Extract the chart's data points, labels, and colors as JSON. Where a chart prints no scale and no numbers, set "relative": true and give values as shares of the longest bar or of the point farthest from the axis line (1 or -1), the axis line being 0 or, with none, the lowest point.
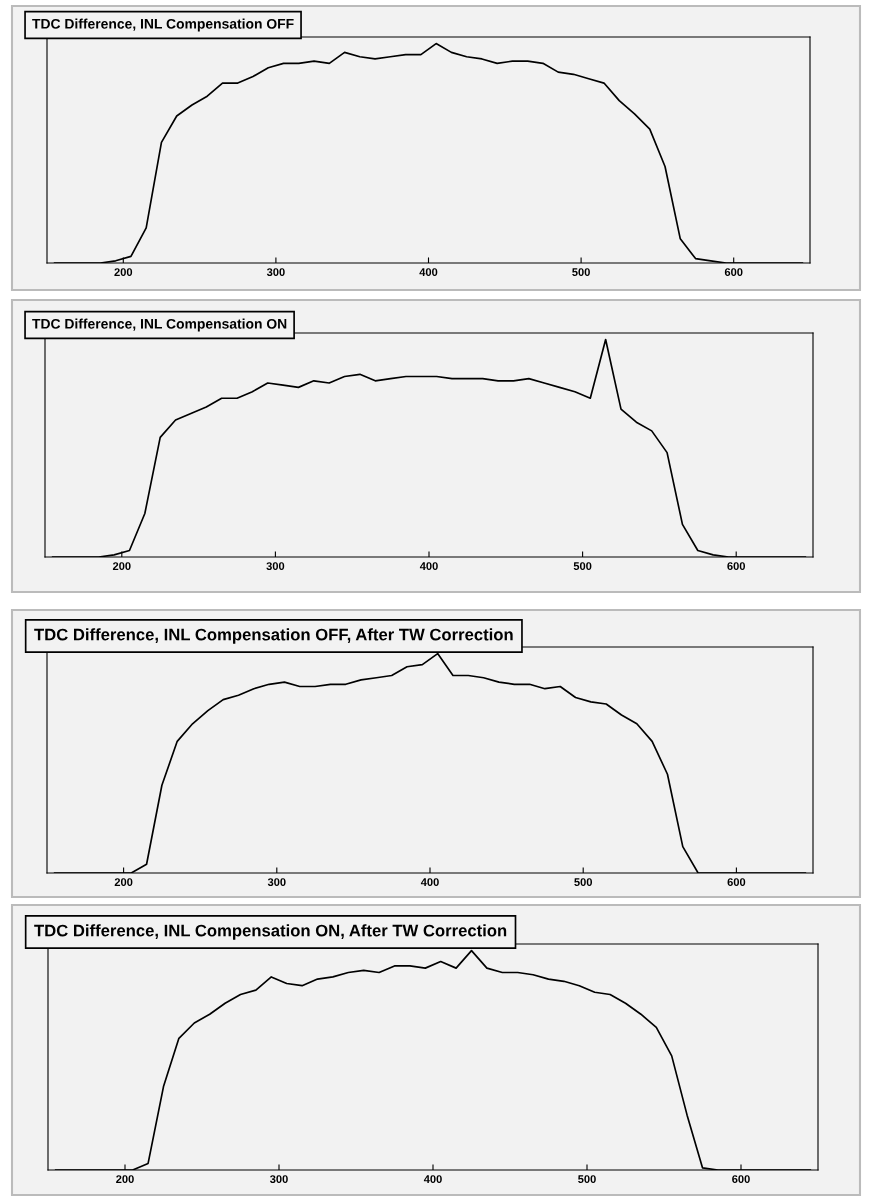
{
  "chart_data": [
    {
      "type": "line",
      "title": "TDC Difference, INL Compensation OFF",
      "relative": true,
      "tick_labels": "x",
      "color": "#000000",
      "xlim": [
        150,
        650
      ],
      "xticks": [
        200,
        300,
        400,
        500,
        600
      ],
      "x": [
        155,
        165,
        175,
        185,
        195,
        205,
        215,
        225,
        235,
        245,
        255,
        265,
        275,
        285,
        295,
        305,
        315,
        325,
        335,
        345,
        355,
        365,
        375,
        385,
        395,
        405,
        415,
        425,
        435,
        445,
        455,
        465,
        475,
        485,
        495,
        505,
        515,
        525,
        535,
        545,
        555,
        565,
        575,
        585,
        595,
        605,
        615,
        625,
        635,
        645
      ],
      "values": [
        0,
        0,
        0,
        0,
        0.01,
        0.03,
        0.16,
        0.55,
        0.67,
        0.72,
        0.76,
        0.82,
        0.82,
        0.85,
        0.89,
        0.91,
        0.91,
        0.92,
        0.91,
        0.96,
        0.94,
        0.93,
        0.94,
        0.95,
        0.95,
        1,
        0.96,
        0.94,
        0.93,
        0.91,
        0.92,
        0.92,
        0.91,
        0.87,
        0.86,
        0.84,
        0.82,
        0.74,
        0.68,
        0.61,
        0.44,
        0.11,
        0.02,
        0.01,
        0,
        0,
        0,
        0,
        0,
        0
      ]
    },
    {
      "type": "line",
      "title": "TDC Difference, INL Compensation ON",
      "relative": true,
      "tick_labels": "x",
      "color": "#000000",
      "xlim": [
        150,
        650
      ],
      "xticks": [
        200,
        300,
        400,
        500,
        600
      ],
      "x": [
        155,
        165,
        175,
        185,
        195,
        205,
        215,
        225,
        235,
        245,
        255,
        265,
        275,
        285,
        295,
        305,
        315,
        325,
        335,
        345,
        355,
        365,
        375,
        385,
        395,
        405,
        415,
        425,
        435,
        445,
        455,
        465,
        475,
        485,
        495,
        505,
        515,
        525,
        535,
        545,
        555,
        565,
        575,
        585,
        595,
        605,
        615,
        625,
        635,
        645
      ],
      "values": [
        0,
        0,
        0,
        0,
        0.01,
        0.03,
        0.2,
        0.55,
        0.63,
        0.66,
        0.69,
        0.73,
        0.73,
        0.76,
        0.8,
        0.79,
        0.78,
        0.81,
        0.8,
        0.83,
        0.84,
        0.81,
        0.82,
        0.83,
        0.83,
        0.83,
        0.82,
        0.82,
        0.82,
        0.81,
        0.81,
        0.82,
        0.8,
        0.78,
        0.76,
        0.73,
        1,
        0.68,
        0.62,
        0.58,
        0.48,
        0.15,
        0.03,
        0.01,
        0,
        0,
        0,
        0,
        0,
        0
      ]
    },
    {
      "type": "line",
      "title": "TDC Difference, INL Compensation OFF, After TW Correction",
      "relative": true,
      "tick_labels": "x",
      "color": "#000000",
      "xlim": [
        150,
        650
      ],
      "xticks": [
        200,
        300,
        400,
        500,
        600
      ],
      "x": [
        155,
        165,
        175,
        185,
        195,
        205,
        215,
        225,
        235,
        245,
        255,
        265,
        275,
        285,
        295,
        305,
        315,
        325,
        335,
        345,
        355,
        365,
        375,
        385,
        395,
        405,
        415,
        425,
        435,
        445,
        455,
        465,
        475,
        485,
        495,
        505,
        515,
        525,
        535,
        545,
        555,
        565,
        575,
        585,
        595,
        605,
        615,
        625,
        635,
        645
      ],
      "values": [
        0,
        0,
        0,
        0,
        0,
        0,
        0.04,
        0.4,
        0.6,
        0.68,
        0.74,
        0.79,
        0.81,
        0.84,
        0.86,
        0.87,
        0.85,
        0.85,
        0.86,
        0.86,
        0.88,
        0.89,
        0.9,
        0.94,
        0.95,
        1,
        0.9,
        0.9,
        0.89,
        0.87,
        0.86,
        0.86,
        0.84,
        0.85,
        0.8,
        0.78,
        0.77,
        0.72,
        0.68,
        0.6,
        0.45,
        0.12,
        0,
        0,
        0,
        0,
        0,
        0,
        0,
        0
      ]
    },
    {
      "type": "line",
      "title": "TDC Difference, INL Compensation ON, After TW Correction",
      "relative": true,
      "tick_labels": "x",
      "color": "#000000",
      "xlim": [
        150,
        650
      ],
      "xticks": [
        200,
        300,
        400,
        500,
        600
      ],
      "x": [
        155,
        165,
        175,
        185,
        195,
        205,
        215,
        225,
        235,
        245,
        255,
        265,
        275,
        285,
        295,
        305,
        315,
        325,
        335,
        345,
        355,
        365,
        375,
        385,
        395,
        405,
        415,
        425,
        435,
        445,
        455,
        465,
        475,
        485,
        495,
        505,
        515,
        525,
        535,
        545,
        555,
        565,
        575,
        585,
        595,
        605,
        615,
        625,
        635,
        645
      ],
      "values": [
        0,
        0,
        0,
        0,
        0,
        0,
        0.03,
        0.38,
        0.6,
        0.67,
        0.71,
        0.76,
        0.8,
        0.82,
        0.88,
        0.85,
        0.84,
        0.87,
        0.88,
        0.9,
        0.91,
        0.9,
        0.93,
        0.93,
        0.92,
        0.95,
        0.92,
        1,
        0.92,
        0.9,
        0.9,
        0.89,
        0.87,
        0.86,
        0.84,
        0.81,
        0.8,
        0.76,
        0.71,
        0.65,
        0.52,
        0.25,
        0.01,
        0,
        0,
        0,
        0,
        0,
        0,
        0
      ]
    }
  ]
}
